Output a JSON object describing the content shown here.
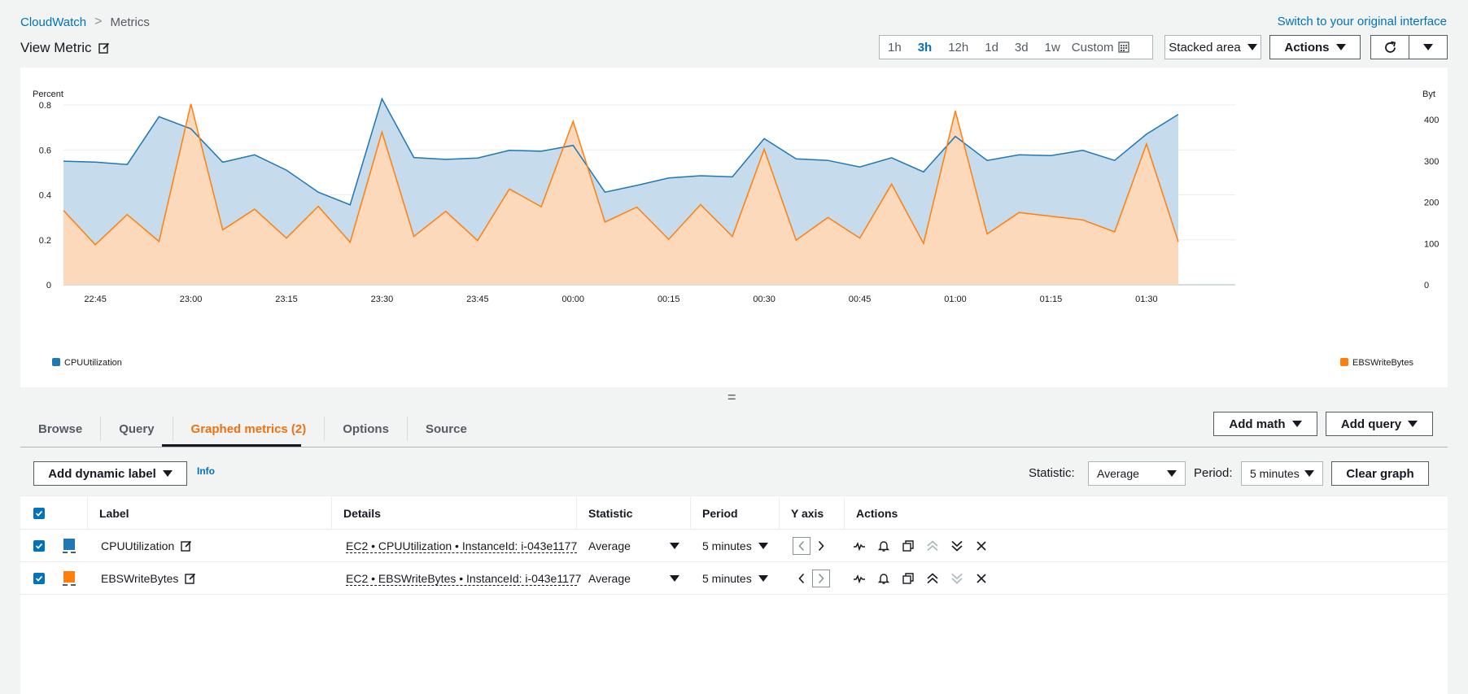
{
  "breadcrumb": {
    "root": "CloudWatch",
    "separator": ">",
    "current": "Metrics"
  },
  "switch_link": "Switch to your original interface",
  "page_title": "View Metric",
  "time_ranges": [
    "1h",
    "3h",
    "12h",
    "1d",
    "3d",
    "1w"
  ],
  "time_range_active": "3h",
  "custom_label": "Custom",
  "graph_type": "Stacked area",
  "actions_label": "Actions",
  "colors": {
    "accent": "#0073bb",
    "orange": "#ec7211",
    "cpu": "#1f77b4",
    "ebs": "#ff7f0e"
  },
  "chart_data": {
    "type": "area",
    "stacked": true,
    "y_left_label": "Percent",
    "y_right_label": "Byt",
    "y_left_ticks": [
      "0",
      "0.2",
      "0.4",
      "0.6",
      "0.8"
    ],
    "y_right_ticks": [
      "0",
      "100",
      "200",
      "300",
      "400"
    ],
    "y_left_range": [
      0,
      0.8
    ],
    "y_right_range": [
      0,
      450
    ],
    "x_ticks": [
      "22:45",
      "23:00",
      "23:15",
      "23:30",
      "23:45",
      "00:00",
      "00:15",
      "00:30",
      "00:45",
      "01:00",
      "01:15",
      "01:30"
    ],
    "x_tick_positions": [
      1,
      4,
      7,
      10,
      13,
      16,
      19,
      22,
      25,
      28,
      31,
      34
    ],
    "grid": true,
    "series": [
      {
        "name": "CPUUtilization",
        "axis": "left",
        "values": [
          0.55,
          0.546,
          0.535,
          0.748,
          0.694,
          0.545,
          0.578,
          0.51,
          0.412,
          0.356,
          0.827,
          0.566,
          0.558,
          0.564,
          0.598,
          0.594,
          0.62,
          0.412,
          0.442,
          0.475,
          0.485,
          0.48,
          0.65,
          0.56,
          0.553,
          0.524,
          0.565,
          0.502,
          0.66,
          0.553,
          0.578,
          0.575,
          0.598,
          0.553,
          0.67,
          0.758
        ]
      },
      {
        "name": "EBSWriteBytes",
        "axis": "right",
        "values": [
          180,
          97,
          170,
          105,
          438,
          133,
          183,
          113,
          190,
          103,
          370,
          117,
          178,
          107,
          232,
          189,
          396,
          152,
          188,
          110,
          194,
          117,
          328,
          108,
          163,
          113,
          244,
          100,
          421,
          123,
          175,
          166,
          157,
          128,
          341,
          104
        ]
      }
    ],
    "legend": {
      "left": "CPUUtilization",
      "right": "EBSWriteBytes",
      "placement": "bottom"
    }
  },
  "tabs": [
    {
      "label": "Browse"
    },
    {
      "label": "Query"
    },
    {
      "label": "Graphed metrics (2)"
    },
    {
      "label": "Options"
    },
    {
      "label": "Source"
    }
  ],
  "add_math_label": "Add math",
  "add_query_label": "Add query",
  "add_dynamic_label": "Add dynamic label",
  "info_label": "Info",
  "statistic_label": "Statistic:",
  "statistic_value": "Average",
  "period_label": "Period:",
  "period_value": "5 minutes",
  "clear_graph_label": "Clear graph",
  "table": {
    "headers": {
      "label": "Label",
      "details": "Details",
      "statistic": "Statistic",
      "period": "Period",
      "yaxis": "Y axis",
      "actions": "Actions"
    },
    "rows": [
      {
        "label": "CPUUtilization",
        "details": "EC2 • CPUUtilization • InstanceId: i-043e1177",
        "statistic": "Average",
        "period": "5 minutes",
        "yaxis": "left"
      },
      {
        "label": "EBSWriteBytes",
        "details": "EC2 • EBSWriteBytes • InstanceId: i-043e1177",
        "statistic": "Average",
        "period": "5 minutes",
        "yaxis": "right"
      }
    ]
  }
}
